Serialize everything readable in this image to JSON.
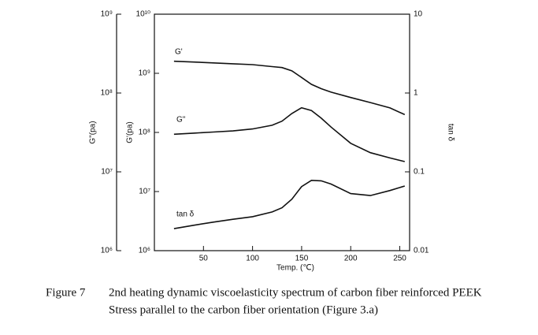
{
  "chart_data": {
    "type": "line",
    "log_scale": true,
    "annotations": [
      "G'",
      "G\"",
      "tan δ"
    ],
    "xlabel": "Temp. (℃)",
    "ylabel": "G'(pa)",
    "y2label": "tan δ",
    "y3label": "G\"(pa)",
    "x": [
      20,
      40,
      60,
      80,
      100,
      120,
      130,
      140,
      150,
      160,
      170,
      180,
      200,
      220,
      240,
      255
    ],
    "series": [
      {
        "name": "G'",
        "color": "#111111",
        "axis": "y",
        "values": [
          1600000000,
          1550000000,
          1500000000,
          1450000000,
          1400000000,
          1300000000,
          1250000000,
          1100000000,
          850000000,
          650000000,
          550000000,
          480000000,
          390000000,
          320000000,
          260000000,
          200000000
        ]
      },
      {
        "name": "G\"",
        "color": "#111111",
        "axis": "y3",
        "values": [
          30000000,
          31000000,
          32000000,
          33000000,
          35000000,
          39000000,
          44000000,
          55000000,
          65000000,
          60000000,
          48000000,
          37000000,
          23000000,
          17500000,
          15000000,
          13500000
        ]
      },
      {
        "name": "tan δ",
        "color": "#111111",
        "axis": "y2",
        "values": [
          0.019,
          0.021,
          0.023,
          0.025,
          0.027,
          0.031,
          0.035,
          0.045,
          0.065,
          0.078,
          0.077,
          0.07,
          0.053,
          0.05,
          0.058,
          0.066
        ]
      }
    ],
    "xlim": [
      0,
      260
    ],
    "xticks": [
      50,
      100,
      150,
      200,
      250
    ],
    "ylim": [
      1000000,
      10000000000
    ],
    "yticks": [
      {
        "value": 1000000,
        "label": "10⁶"
      },
      {
        "value": 10000000,
        "label": "10⁷"
      },
      {
        "value": 100000000,
        "label": "10⁸"
      },
      {
        "value": 1000000000,
        "label": "10⁹"
      },
      {
        "value": 10000000000,
        "label": "10¹⁰"
      }
    ],
    "y2lim": [
      0.01,
      10
    ],
    "y2ticks": [
      0.01,
      0.1,
      1,
      10
    ],
    "y3lim": [
      1000000,
      1000000000
    ],
    "y3ticks": [
      {
        "value": 1000000,
        "label": "10⁶"
      },
      {
        "value": 10000000,
        "label": "10⁷"
      },
      {
        "value": 100000000,
        "label": "10⁸"
      },
      {
        "value": 1000000000,
        "label": "10⁹"
      }
    ],
    "caption": [
      "Figure 7",
      "2nd heating dynamic viscoelasticity spectrum of carbon fiber reinforced PEEK",
      "Stress parallel to the carbon fiber orientation (Figure 3.a)"
    ]
  }
}
